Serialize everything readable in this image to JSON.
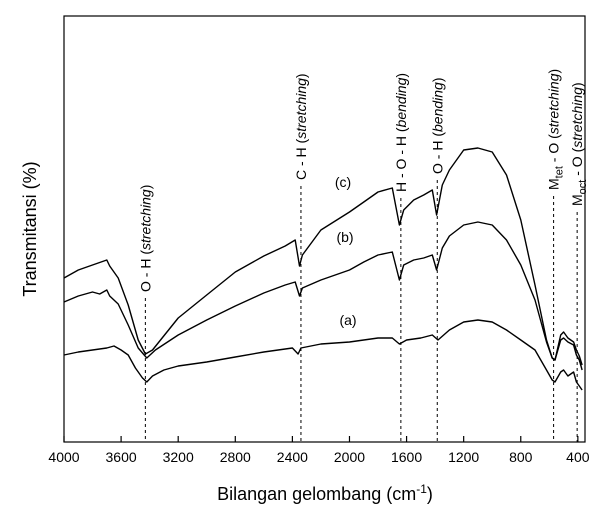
{
  "chart_data": {
    "type": "line",
    "xlabel": "Bilangan gelombang (cm",
    "xlabel_sup": "-1",
    "xlabel_end": ")",
    "ylabel": "Transmitansi (%)",
    "xlim": [
      4000,
      350
    ],
    "x_reversed": true,
    "yaxis_ticks": false,
    "grid": false,
    "x_ticks": [
      4000,
      3600,
      3200,
      2800,
      2400,
      2000,
      1600,
      1200,
      800,
      400
    ],
    "x_tick_labels": [
      "4000",
      "3600",
      "3200",
      "2800",
      "2400",
      "2000",
      "1600",
      "1200",
      "800",
      "400"
    ],
    "series": [
      {
        "name": "(a)",
        "points": [
          [
            4000,
            355
          ],
          [
            3900,
            352
          ],
          [
            3800,
            350
          ],
          [
            3700,
            348
          ],
          [
            3650,
            346
          ],
          [
            3600,
            350
          ],
          [
            3550,
            355
          ],
          [
            3500,
            368
          ],
          [
            3450,
            378
          ],
          [
            3420,
            382
          ],
          [
            3380,
            376
          ],
          [
            3300,
            370
          ],
          [
            3200,
            366
          ],
          [
            3000,
            362
          ],
          [
            2800,
            357
          ],
          [
            2600,
            352
          ],
          [
            2400,
            348
          ],
          [
            2360,
            354
          ],
          [
            2340,
            348
          ],
          [
            2200,
            344
          ],
          [
            2000,
            342
          ],
          [
            1800,
            338
          ],
          [
            1700,
            338
          ],
          [
            1650,
            344
          ],
          [
            1600,
            340
          ],
          [
            1500,
            338
          ],
          [
            1420,
            335
          ],
          [
            1380,
            340
          ],
          [
            1300,
            330
          ],
          [
            1200,
            322
          ],
          [
            1100,
            320
          ],
          [
            1000,
            322
          ],
          [
            900,
            330
          ],
          [
            800,
            340
          ],
          [
            700,
            350
          ],
          [
            620,
            370
          ],
          [
            580,
            380
          ],
          [
            560,
            382
          ],
          [
            520,
            372
          ],
          [
            500,
            370
          ],
          [
            470,
            376
          ],
          [
            430,
            372
          ],
          [
            410,
            382
          ],
          [
            390,
            386
          ],
          [
            370,
            390
          ]
        ]
      },
      {
        "name": "(b)",
        "points": [
          [
            4000,
            302
          ],
          [
            3900,
            296
          ],
          [
            3800,
            292
          ],
          [
            3750,
            294
          ],
          [
            3700,
            290
          ],
          [
            3680,
            296
          ],
          [
            3620,
            304
          ],
          [
            3550,
            325
          ],
          [
            3480,
            348
          ],
          [
            3420,
            358
          ],
          [
            3360,
            350
          ],
          [
            3200,
            335
          ],
          [
            3000,
            320
          ],
          [
            2800,
            306
          ],
          [
            2600,
            293
          ],
          [
            2450,
            285
          ],
          [
            2380,
            282
          ],
          [
            2350,
            296
          ],
          [
            2330,
            288
          ],
          [
            2200,
            280
          ],
          [
            2000,
            270
          ],
          [
            1900,
            262
          ],
          [
            1800,
            255
          ],
          [
            1700,
            252
          ],
          [
            1650,
            280
          ],
          [
            1620,
            265
          ],
          [
            1550,
            260
          ],
          [
            1480,
            258
          ],
          [
            1420,
            255
          ],
          [
            1390,
            270
          ],
          [
            1350,
            248
          ],
          [
            1300,
            236
          ],
          [
            1200,
            225
          ],
          [
            1100,
            222
          ],
          [
            1000,
            225
          ],
          [
            900,
            240
          ],
          [
            800,
            265
          ],
          [
            700,
            300
          ],
          [
            620,
            342
          ],
          [
            580,
            358
          ],
          [
            560,
            360
          ],
          [
            520,
            340
          ],
          [
            500,
            338
          ],
          [
            470,
            342
          ],
          [
            430,
            345
          ],
          [
            410,
            355
          ],
          [
            390,
            360
          ],
          [
            370,
            370
          ]
        ]
      },
      {
        "name": "(c)",
        "points": [
          [
            4000,
            278
          ],
          [
            3900,
            270
          ],
          [
            3800,
            265
          ],
          [
            3700,
            260
          ],
          [
            3680,
            266
          ],
          [
            3620,
            278
          ],
          [
            3550,
            305
          ],
          [
            3480,
            340
          ],
          [
            3430,
            354
          ],
          [
            3380,
            350
          ],
          [
            3200,
            318
          ],
          [
            3000,
            295
          ],
          [
            2800,
            272
          ],
          [
            2600,
            256
          ],
          [
            2450,
            246
          ],
          [
            2380,
            240
          ],
          [
            2350,
            266
          ],
          [
            2330,
            255
          ],
          [
            2200,
            230
          ],
          [
            2000,
            212
          ],
          [
            1900,
            202
          ],
          [
            1800,
            192
          ],
          [
            1700,
            188
          ],
          [
            1650,
            225
          ],
          [
            1620,
            210
          ],
          [
            1550,
            200
          ],
          [
            1480,
            195
          ],
          [
            1420,
            190
          ],
          [
            1390,
            215
          ],
          [
            1350,
            185
          ],
          [
            1300,
            170
          ],
          [
            1200,
            150
          ],
          [
            1100,
            148
          ],
          [
            1000,
            152
          ],
          [
            900,
            175
          ],
          [
            800,
            220
          ],
          [
            700,
            285
          ],
          [
            620,
            340
          ],
          [
            580,
            358
          ],
          [
            560,
            360
          ],
          [
            520,
            335
          ],
          [
            500,
            332
          ],
          [
            470,
            338
          ],
          [
            430,
            342
          ],
          [
            410,
            350
          ],
          [
            390,
            356
          ],
          [
            370,
            365
          ]
        ]
      }
    ],
    "annotations": [
      {
        "x": 3430,
        "text": "O - H (",
        "italic": "stretching",
        "end": ")"
      },
      {
        "x": 2340,
        "text": "C - H (",
        "italic": "stretching",
        "end": ")"
      },
      {
        "x": 1640,
        "text": "H - O - H (",
        "italic": "bending",
        "end": ")"
      },
      {
        "x": 1385,
        "text": "O - H (",
        "italic": "bending",
        "end": ")"
      },
      {
        "x": 570,
        "text": "M",
        "sub": "tet",
        "text2": " - O (",
        "italic": "stretching",
        "end": ")"
      },
      {
        "x": 405,
        "text": "M",
        "sub": "oct",
        "text2": " - O (",
        "italic": "stretching",
        "end": ")"
      }
    ]
  }
}
